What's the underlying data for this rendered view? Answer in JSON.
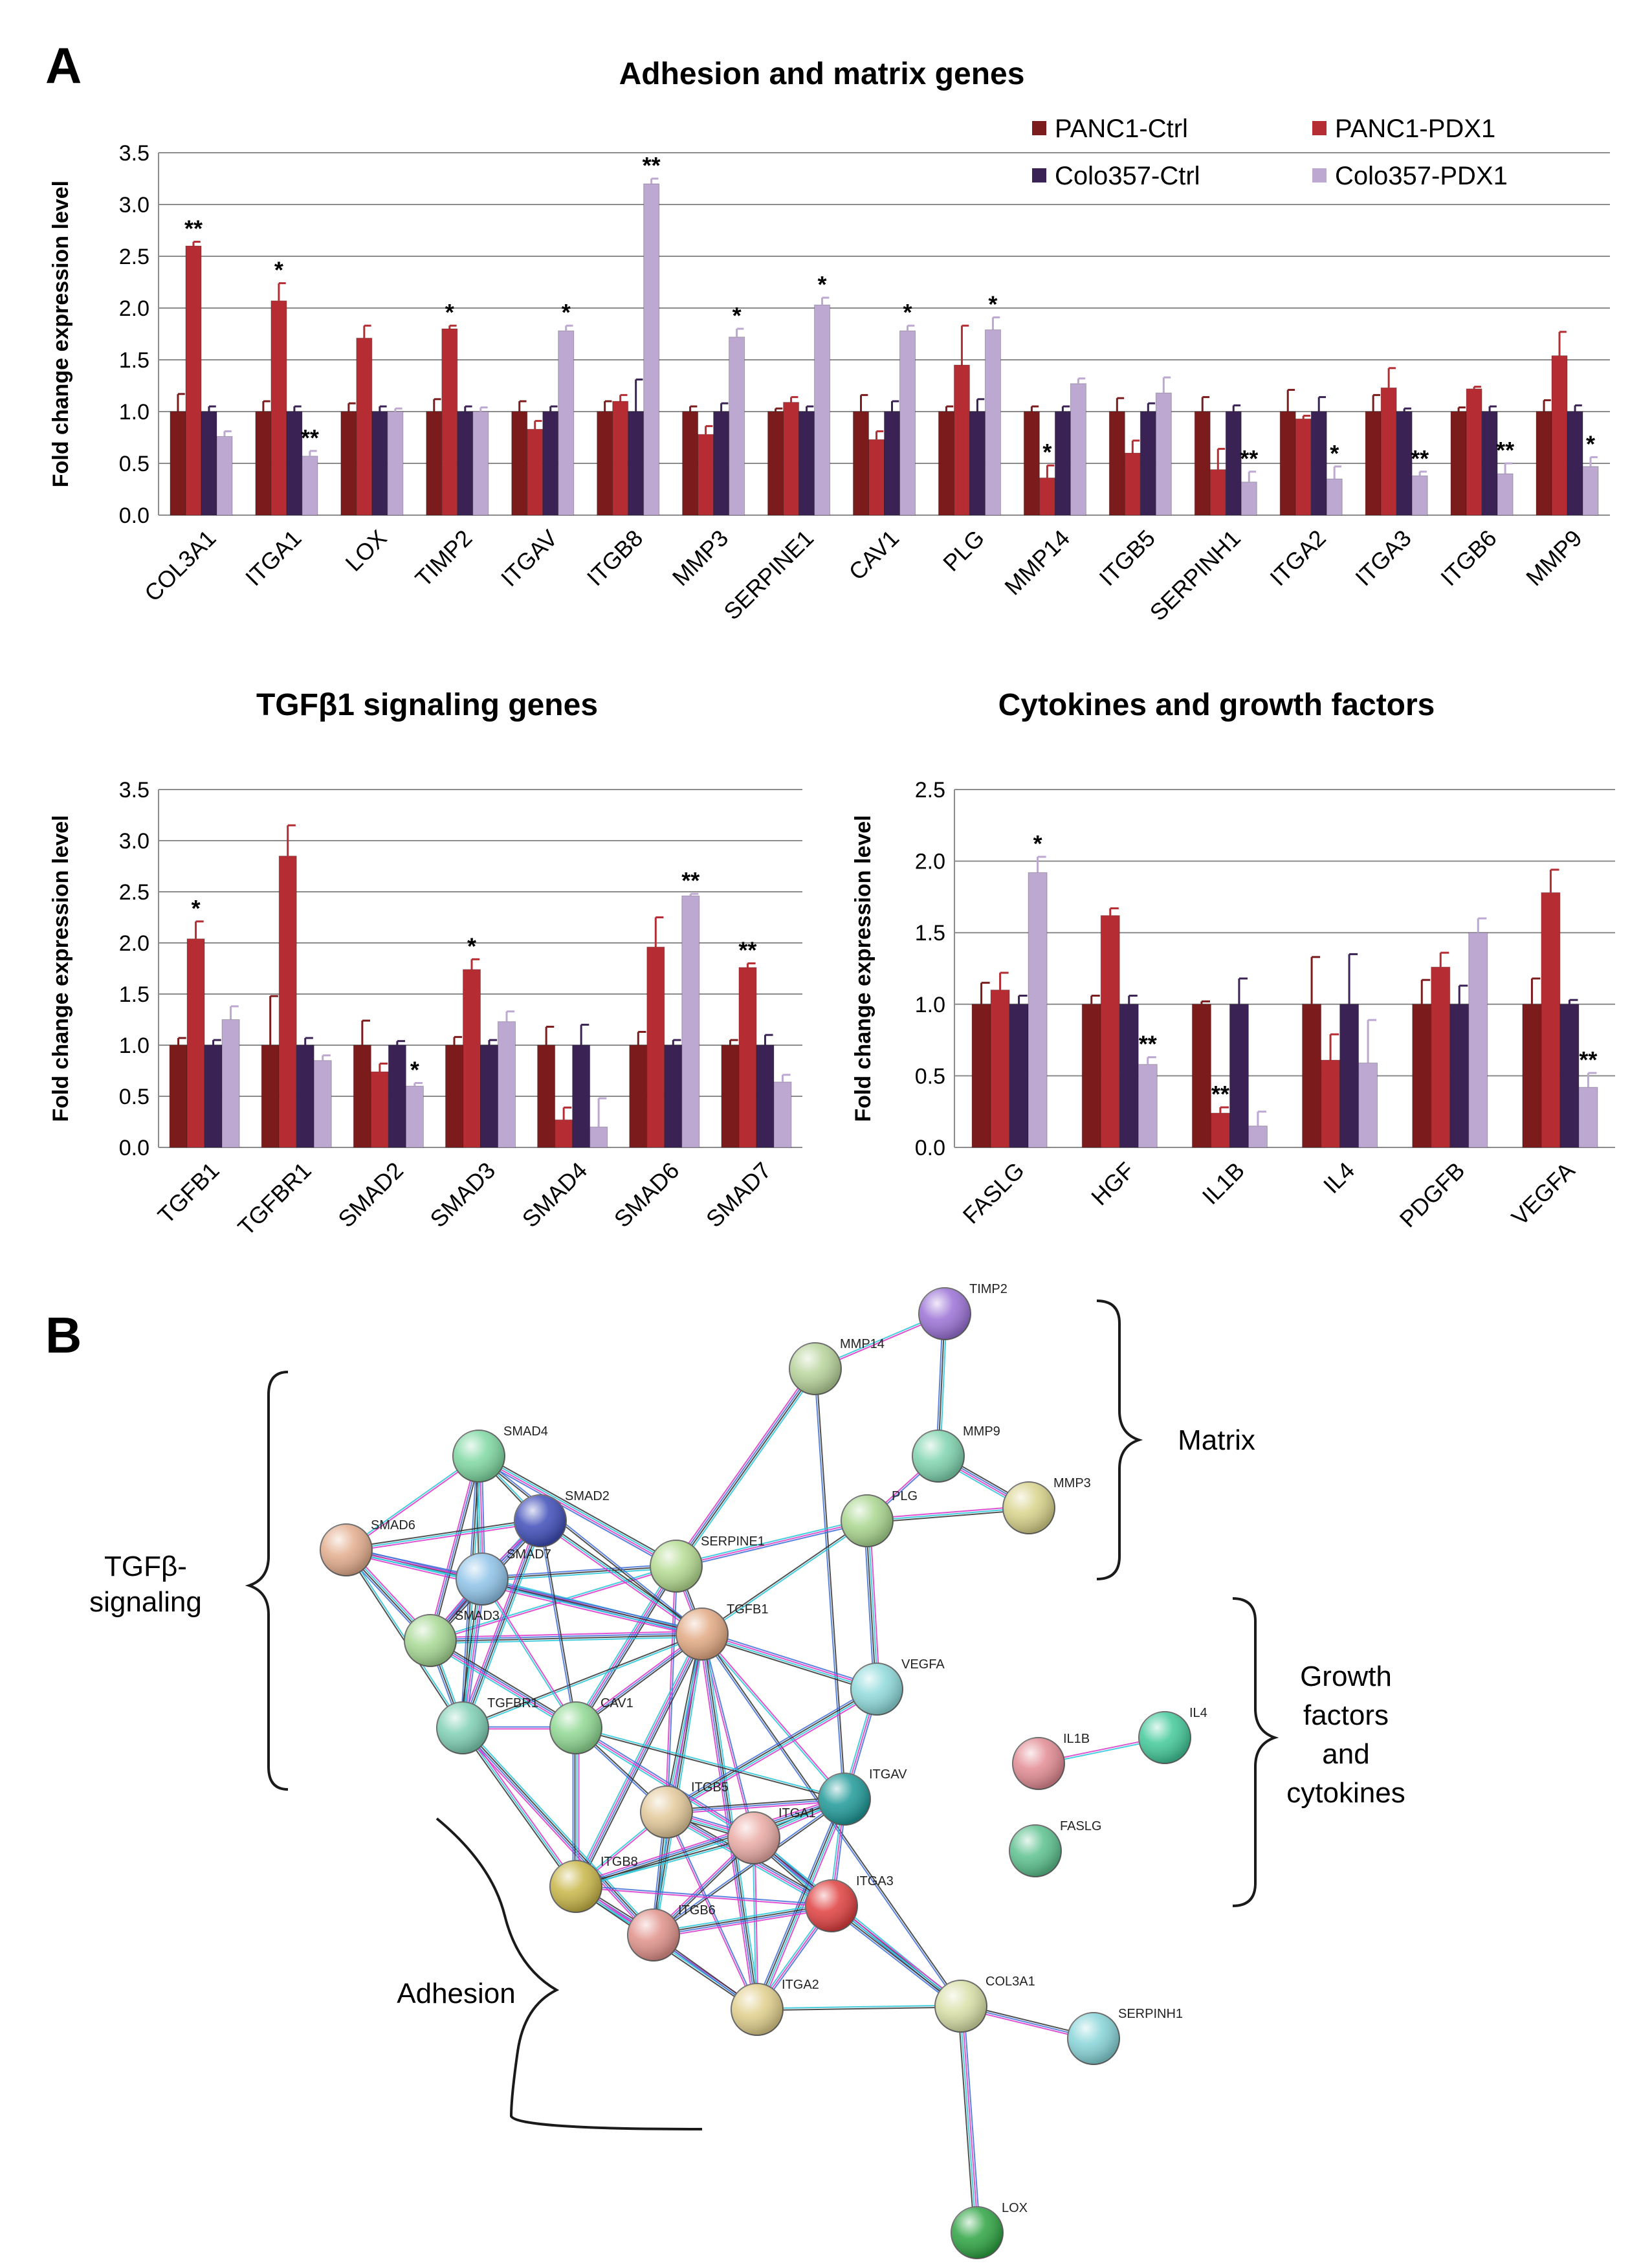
{
  "panels": {
    "a": "A",
    "b": "B"
  },
  "colors": {
    "PANC1-Ctrl": "#7b1b1b",
    "PANC1-PDX1": "#b52d33",
    "Colo357-Ctrl": "#3a2255",
    "Colo357-PDX1": "#bda8d2",
    "grid": "#8c8c8c",
    "bracket": "#1a1a1a"
  },
  "legend": [
    "PANC1-Ctrl",
    "PANC1-PDX1",
    "Colo357-Ctrl",
    "Colo357-PDX1"
  ],
  "chart_data": [
    {
      "id": "adhesion",
      "type": "bar",
      "title": "Adhesion and matrix genes",
      "ylabel": "Fold  change expression level",
      "xlabel": "",
      "ylim": [
        0,
        3.5
      ],
      "yticks": [
        "0.0",
        "0.5",
        "1.0",
        "1.5",
        "2.0",
        "2.5",
        "3.0",
        "3.5"
      ],
      "categories": [
        "COL3A1",
        "ITGA1",
        "LOX",
        "TIMP2",
        "ITGAV",
        "ITGB8",
        "MMP3",
        "SERPINE1",
        "CAV1",
        "PLG",
        "MMP14",
        "ITGB5",
        "SERPINH1",
        "ITGA2",
        "ITGA3",
        "ITGB6",
        "MMP9"
      ],
      "series": [
        {
          "name": "PANC1-Ctrl",
          "values": [
            1,
            1,
            1,
            1,
            1,
            1,
            1,
            1,
            1,
            1,
            1,
            1,
            1,
            1,
            1,
            1,
            1
          ],
          "errors": [
            0.17,
            0.1,
            0.08,
            0.12,
            0.1,
            0.1,
            0.05,
            0.03,
            0.16,
            0.05,
            0.05,
            0.13,
            0.14,
            0.21,
            0.16,
            0.04,
            0.11
          ]
        },
        {
          "name": "PANC1-PDX1",
          "values": [
            2.6,
            2.07,
            1.71,
            1.8,
            0.83,
            1.1,
            0.78,
            1.09,
            0.73,
            1.45,
            0.36,
            0.6,
            0.44,
            0.93,
            1.23,
            1.22,
            1.54
          ]
        },
        {
          "name": "Colo357-Ctrl",
          "values": [
            1,
            1,
            1,
            1,
            1,
            1,
            1,
            1,
            1,
            1,
            1,
            1,
            1,
            1,
            1,
            1,
            1
          ],
          "errors": [
            0.05,
            0.05,
            0.05,
            0.05,
            0.05,
            0.31,
            0.08,
            0.05,
            0.1,
            0.12,
            0.05,
            0.08,
            0.06,
            0.14,
            0.03,
            0.05,
            0.06
          ]
        },
        {
          "name": "Colo357-PDX1",
          "values": [
            0.76,
            0.57,
            1.0,
            1.0,
            1.78,
            3.2,
            1.72,
            2.03,
            1.78,
            1.79,
            1.27,
            1.18,
            0.32,
            0.35,
            0.38,
            0.4,
            0.47
          ]
        }
      ],
      "errors_pdx": {
        "PANC1-PDX1": [
          0.04,
          0.17,
          0.12,
          0.03,
          0.08,
          0.06,
          0.08,
          0.05,
          0.08,
          0.38,
          0.12,
          0.12,
          0.2,
          0.03,
          0.19,
          0.02,
          0.23
        ],
        "Colo357-PDX1": [
          0.05,
          0.05,
          0.03,
          0.04,
          0.05,
          0.05,
          0.08,
          0.07,
          0.05,
          0.12,
          0.05,
          0.15,
          0.1,
          0.12,
          0.04,
          0.1,
          0.09
        ]
      },
      "significance": [
        {
          "category": "COL3A1",
          "series": "PANC1-PDX1",
          "mark": "**"
        },
        {
          "category": "ITGA1",
          "series": "PANC1-PDX1",
          "mark": "*"
        },
        {
          "category": "ITGA1",
          "series": "Colo357-PDX1",
          "mark": "**"
        },
        {
          "category": "TIMP2",
          "series": "PANC1-PDX1",
          "mark": "*"
        },
        {
          "category": "ITGAV",
          "series": "Colo357-PDX1",
          "mark": "*"
        },
        {
          "category": "ITGB8",
          "series": "Colo357-PDX1",
          "mark": "**"
        },
        {
          "category": "MMP3",
          "series": "Colo357-PDX1",
          "mark": "*"
        },
        {
          "category": "SERPINE1",
          "series": "Colo357-PDX1",
          "mark": "*"
        },
        {
          "category": "CAV1",
          "series": "Colo357-PDX1",
          "mark": "*"
        },
        {
          "category": "PLG",
          "series": "Colo357-PDX1",
          "mark": "*"
        },
        {
          "category": "MMP14",
          "series": "PANC1-PDX1",
          "mark": "*"
        },
        {
          "category": "SERPINH1",
          "series": "Colo357-PDX1",
          "mark": "**"
        },
        {
          "category": "ITGA2",
          "series": "Colo357-PDX1",
          "mark": "*"
        },
        {
          "category": "ITGA3",
          "series": "Colo357-PDX1",
          "mark": "**"
        },
        {
          "category": "ITGB6",
          "series": "Colo357-PDX1",
          "mark": "**"
        },
        {
          "category": "MMP9",
          "series": "Colo357-PDX1",
          "mark": "*"
        }
      ]
    },
    {
      "id": "tgfb",
      "type": "bar",
      "title": "TGFβ1 signaling genes",
      "ylabel": "Fold  change expression level",
      "xlabel": "",
      "ylim": [
        0,
        3.5
      ],
      "yticks": [
        "0.0",
        "0.5",
        "1.0",
        "1.5",
        "2.0",
        "2.5",
        "3.0",
        "3.5"
      ],
      "categories": [
        "TGFB1",
        "TGFBR1",
        "SMAD2",
        "SMAD3",
        "SMAD4",
        "SMAD6",
        "SMAD7"
      ],
      "series": [
        {
          "name": "PANC1-Ctrl",
          "values": [
            1,
            1,
            1,
            1,
            1,
            1,
            1
          ],
          "errors": [
            0.07,
            0.48,
            0.24,
            0.08,
            0.18,
            0.13,
            0.05
          ]
        },
        {
          "name": "PANC1-PDX1",
          "values": [
            2.04,
            2.85,
            0.74,
            1.74,
            0.27,
            1.96,
            1.76
          ]
        },
        {
          "name": "Colo357-Ctrl",
          "values": [
            1,
            1,
            1,
            1,
            1,
            1,
            1
          ],
          "errors": [
            0.05,
            0.07,
            0.04,
            0.05,
            0.2,
            0.05,
            0.1
          ]
        },
        {
          "name": "Colo357-PDX1",
          "values": [
            1.25,
            0.85,
            0.6,
            1.23,
            0.2,
            2.46,
            0.64
          ]
        }
      ],
      "errors_pdx": {
        "PANC1-PDX1": [
          0.17,
          0.3,
          0.08,
          0.1,
          0.12,
          0.29,
          0.04
        ],
        "Colo357-PDX1": [
          0.13,
          0.05,
          0.03,
          0.1,
          0.28,
          0.02,
          0.07
        ]
      },
      "significance": [
        {
          "category": "TGFB1",
          "series": "PANC1-PDX1",
          "mark": "*"
        },
        {
          "category": "SMAD2",
          "series": "Colo357-PDX1",
          "mark": "*"
        },
        {
          "category": "SMAD3",
          "series": "PANC1-PDX1",
          "mark": "*"
        },
        {
          "category": "SMAD6",
          "series": "Colo357-PDX1",
          "mark": "**"
        },
        {
          "category": "SMAD7",
          "series": "PANC1-PDX1",
          "mark": "**"
        }
      ]
    },
    {
      "id": "cytokines",
      "type": "bar",
      "title": "Cytokines and growth factors",
      "ylabel": "Fold  change expression level",
      "xlabel": "",
      "ylim": [
        0,
        2.5
      ],
      "yticks": [
        "0.0",
        "0.5",
        "1.0",
        "1.5",
        "2.0",
        "2.5"
      ],
      "categories": [
        "FASLG",
        "HGF",
        "IL1B",
        "IL4",
        "PDGFB",
        "VEGFA"
      ],
      "series": [
        {
          "name": "PANC1-Ctrl",
          "values": [
            1,
            1,
            1,
            1,
            1,
            1
          ],
          "errors": [
            0.15,
            0.06,
            0.02,
            0.33,
            0.17,
            0.18
          ]
        },
        {
          "name": "PANC1-PDX1",
          "values": [
            1.1,
            1.62,
            0.24,
            0.61,
            1.26,
            1.78
          ]
        },
        {
          "name": "Colo357-Ctrl",
          "values": [
            1,
            1,
            1,
            1,
            1,
            1
          ],
          "errors": [
            0.06,
            0.06,
            0.18,
            0.35,
            0.13,
            0.03
          ]
        },
        {
          "name": "Colo357-PDX1",
          "values": [
            1.92,
            0.58,
            0.15,
            0.59,
            1.5,
            0.42
          ]
        }
      ],
      "errors_pdx": {
        "PANC1-PDX1": [
          0.12,
          0.05,
          0.04,
          0.18,
          0.1,
          0.16
        ],
        "Colo357-PDX1": [
          0.11,
          0.05,
          0.1,
          0.3,
          0.1,
          0.1
        ]
      },
      "significance": [
        {
          "category": "FASLG",
          "series": "Colo357-PDX1",
          "mark": "*"
        },
        {
          "category": "HGF",
          "series": "Colo357-PDX1",
          "mark": "**"
        },
        {
          "category": "IL1B",
          "series": "PANC1-PDX1",
          "mark": "**"
        },
        {
          "category": "VEGFA",
          "series": "Colo357-PDX1",
          "mark": "**"
        }
      ]
    }
  ],
  "network": {
    "groups": [
      "Matrix",
      "TGFβ-\nsignaling",
      "Growth\nfactors\nand\ncytokines",
      "Adhesion"
    ],
    "nodes": [
      {
        "id": "TIMP2",
        "color": "#9b72d6"
      },
      {
        "id": "MMP14",
        "color": "#b7d39a"
      },
      {
        "id": "MMP9",
        "color": "#7fd4ae"
      },
      {
        "id": "MMP3",
        "color": "#d8d28a"
      },
      {
        "id": "PLG",
        "color": "#a9d68f"
      },
      {
        "id": "SERPINE1",
        "color": "#b3db90"
      },
      {
        "id": "TGFB1",
        "color": "#e2a983"
      },
      {
        "id": "VEGFA",
        "color": "#8fdadb"
      },
      {
        "id": "SMAD4",
        "color": "#7fd8a2"
      },
      {
        "id": "SMAD2",
        "color": "#3e4db8"
      },
      {
        "id": "SMAD6",
        "color": "#e3ad8d"
      },
      {
        "id": "SMAD7",
        "color": "#8fc3e8"
      },
      {
        "id": "SMAD3",
        "color": "#a6d893"
      },
      {
        "id": "TGFBR1",
        "color": "#7fd0b4"
      },
      {
        "id": "CAV1",
        "color": "#8fd892"
      },
      {
        "id": "ITGB5",
        "color": "#e3c99a"
      },
      {
        "id": "ITGAV",
        "color": "#1f9a98"
      },
      {
        "id": "ITGA1",
        "color": "#eaaaa4"
      },
      {
        "id": "ITGB8",
        "color": "#c8b648"
      },
      {
        "id": "ITGB6",
        "color": "#e0918a"
      },
      {
        "id": "ITGA3",
        "color": "#e04040"
      },
      {
        "id": "ITGA2",
        "color": "#e1cf8c"
      },
      {
        "id": "COL3A1",
        "color": "#d8dfa6"
      },
      {
        "id": "SERPINH1",
        "color": "#86d4d8"
      },
      {
        "id": "LOX",
        "color": "#2ea443"
      },
      {
        "id": "IL1B",
        "color": "#e28b93"
      },
      {
        "id": "IL4",
        "color": "#42c99a"
      },
      {
        "id": "FASLG",
        "color": "#5cc18e"
      }
    ],
    "edges": [
      [
        "TIMP2",
        "MMP14"
      ],
      [
        "TIMP2",
        "MMP9"
      ],
      [
        "MMP9",
        "MMP3"
      ],
      [
        "MMP9",
        "PLG"
      ],
      [
        "PLG",
        "MMP3"
      ],
      [
        "MMP14",
        "SERPINE1"
      ],
      [
        "MMP14",
        "ITGAV"
      ],
      [
        "PLG",
        "SERPINE1"
      ],
      [
        "PLG",
        "VEGFA"
      ],
      [
        "PLG",
        "TGFB1"
      ],
      [
        "SERPINE1",
        "TGFB1"
      ],
      [
        "SERPINE1",
        "SMAD4"
      ],
      [
        "SERPINE1",
        "SMAD3"
      ],
      [
        "SERPINE1",
        "SMAD7"
      ],
      [
        "SERPINE1",
        "CAV1"
      ],
      [
        "SERPINE1",
        "ITGB5"
      ],
      [
        "TGFB1",
        "SMAD2"
      ],
      [
        "TGFB1",
        "SMAD3"
      ],
      [
        "TGFB1",
        "SMAD4"
      ],
      [
        "TGFB1",
        "SMAD7"
      ],
      [
        "TGFB1",
        "SMAD6"
      ],
      [
        "TGFB1",
        "TGFBR1"
      ],
      [
        "TGFB1",
        "CAV1"
      ],
      [
        "TGFB1",
        "VEGFA"
      ],
      [
        "TGFB1",
        "ITGAV"
      ],
      [
        "TGFB1",
        "ITGB6"
      ],
      [
        "TGFB1",
        "ITGB8"
      ],
      [
        "TGFB1",
        "ITGA1"
      ],
      [
        "TGFB1",
        "ITGB5"
      ],
      [
        "TGFB1",
        "ITGA2"
      ],
      [
        "TGFB1",
        "COL3A1"
      ],
      [
        "VEGFA",
        "ITGAV"
      ],
      [
        "VEGFA",
        "ITGB5"
      ],
      [
        "SMAD4",
        "SMAD2"
      ],
      [
        "SMAD4",
        "SMAD3"
      ],
      [
        "SMAD4",
        "SMAD7"
      ],
      [
        "SMAD4",
        "SMAD6"
      ],
      [
        "SMAD4",
        "TGFBR1"
      ],
      [
        "SMAD2",
        "SMAD3"
      ],
      [
        "SMAD2",
        "SMAD7"
      ],
      [
        "SMAD2",
        "SMAD6"
      ],
      [
        "SMAD2",
        "TGFBR1"
      ],
      [
        "SMAD2",
        "CAV1"
      ],
      [
        "SMAD6",
        "SMAD7"
      ],
      [
        "SMAD6",
        "SMAD3"
      ],
      [
        "SMAD6",
        "TGFBR1"
      ],
      [
        "SMAD7",
        "SMAD3"
      ],
      [
        "SMAD7",
        "TGFBR1"
      ],
      [
        "SMAD7",
        "CAV1"
      ],
      [
        "SMAD3",
        "TGFBR1"
      ],
      [
        "SMAD3",
        "CAV1"
      ],
      [
        "TGFBR1",
        "CAV1"
      ],
      [
        "TGFBR1",
        "ITGB8"
      ],
      [
        "TGFBR1",
        "ITGB6"
      ],
      [
        "CAV1",
        "ITGB5"
      ],
      [
        "CAV1",
        "ITGA1"
      ],
      [
        "CAV1",
        "ITGB8"
      ],
      [
        "CAV1",
        "ITGAV"
      ],
      [
        "ITGB5",
        "ITGAV"
      ],
      [
        "ITGB5",
        "ITGA1"
      ],
      [
        "ITGB5",
        "ITGB8"
      ],
      [
        "ITGB5",
        "ITGB6"
      ],
      [
        "ITGB5",
        "ITGA3"
      ],
      [
        "ITGB5",
        "ITGA2"
      ],
      [
        "ITGAV",
        "ITGA1"
      ],
      [
        "ITGAV",
        "ITGB8"
      ],
      [
        "ITGAV",
        "ITGB6"
      ],
      [
        "ITGAV",
        "ITGA3"
      ],
      [
        "ITGAV",
        "ITGA2"
      ],
      [
        "ITGA1",
        "ITGB8"
      ],
      [
        "ITGA1",
        "ITGB6"
      ],
      [
        "ITGA1",
        "ITGA3"
      ],
      [
        "ITGA1",
        "ITGA2"
      ],
      [
        "ITGA1",
        "COL3A1"
      ],
      [
        "ITGB8",
        "ITGB6"
      ],
      [
        "ITGB8",
        "ITGA3"
      ],
      [
        "ITGB8",
        "ITGA2"
      ],
      [
        "ITGB6",
        "ITGA3"
      ],
      [
        "ITGB6",
        "ITGA2"
      ],
      [
        "ITGA3",
        "ITGA2"
      ],
      [
        "ITGA3",
        "COL3A1"
      ],
      [
        "ITGA2",
        "COL3A1"
      ],
      [
        "COL3A1",
        "SERPINH1"
      ],
      [
        "COL3A1",
        "LOX"
      ],
      [
        "IL1B",
        "IL4"
      ]
    ]
  }
}
